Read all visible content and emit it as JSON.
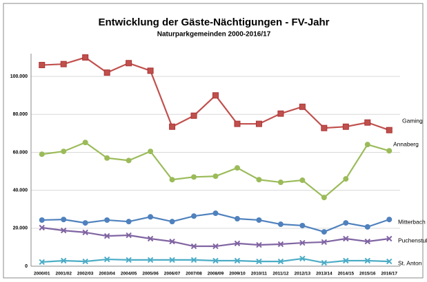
{
  "chart_data": {
    "type": "line",
    "title": "Entwicklung der Gäste-Nächtigungen - FV-Jahr",
    "subtitle": "Naturparkgemeinden 2000-2016/17",
    "categories": [
      "2000/01",
      "2001/02",
      "2002/03",
      "2003/04",
      "2004/05",
      "2005/06",
      "2006/07",
      "2007/08",
      "2008/09",
      "2009/10",
      "2010/11",
      "2011/12",
      "2012/13",
      "2013/14",
      "2014/15",
      "2015/16",
      "2016/17"
    ],
    "series": [
      {
        "name": "Gaming",
        "color": "#c0504d",
        "marker": "square",
        "values": [
          106000,
          106500,
          110000,
          102000,
          107000,
          103000,
          73500,
          79300,
          90000,
          75000,
          75000,
          80400,
          84000,
          72800,
          73500,
          75700,
          71700
        ]
      },
      {
        "name": "Annaberg",
        "color": "#9bbb59",
        "marker": "circle",
        "values": [
          59000,
          60500,
          65200,
          57000,
          55700,
          60500,
          45600,
          47000,
          47400,
          51800,
          45600,
          44200,
          45300,
          36200,
          46000,
          64100,
          60800
        ]
      },
      {
        "name": "Mitterbach",
        "color": "#4f81bd",
        "marker": "circle",
        "values": [
          24300,
          24600,
          22800,
          24300,
          23500,
          26000,
          23500,
          26400,
          27900,
          25000,
          24300,
          22100,
          21400,
          18100,
          22800,
          20700,
          24600
        ]
      },
      {
        "name": "Puchenstuben",
        "color": "#8064a2",
        "marker": "x",
        "values": [
          20300,
          18800,
          17800,
          15900,
          16300,
          14500,
          13000,
          10500,
          10500,
          12000,
          11200,
          11600,
          12300,
          12700,
          14500,
          13000,
          14500
        ]
      },
      {
        "name": "St. Anton",
        "color": "#4bacc6",
        "marker": "x",
        "values": [
          2200,
          2900,
          2500,
          3600,
          3300,
          3300,
          3300,
          3300,
          2900,
          2900,
          2500,
          2500,
          4000,
          1800,
          2900,
          2900,
          2500
        ]
      }
    ],
    "ylim": [
      0,
      112000
    ],
    "yticks": [
      0,
      {
        "value": 20000,
        "label": "20.000"
      },
      {
        "value": 40000,
        "label": "40.000"
      },
      {
        "value": 60000,
        "label": "60.000"
      },
      {
        "value": 80000,
        "label": "80.000"
      },
      {
        "value": 100000,
        "label": "100.000"
      }
    ],
    "grid": true
  }
}
